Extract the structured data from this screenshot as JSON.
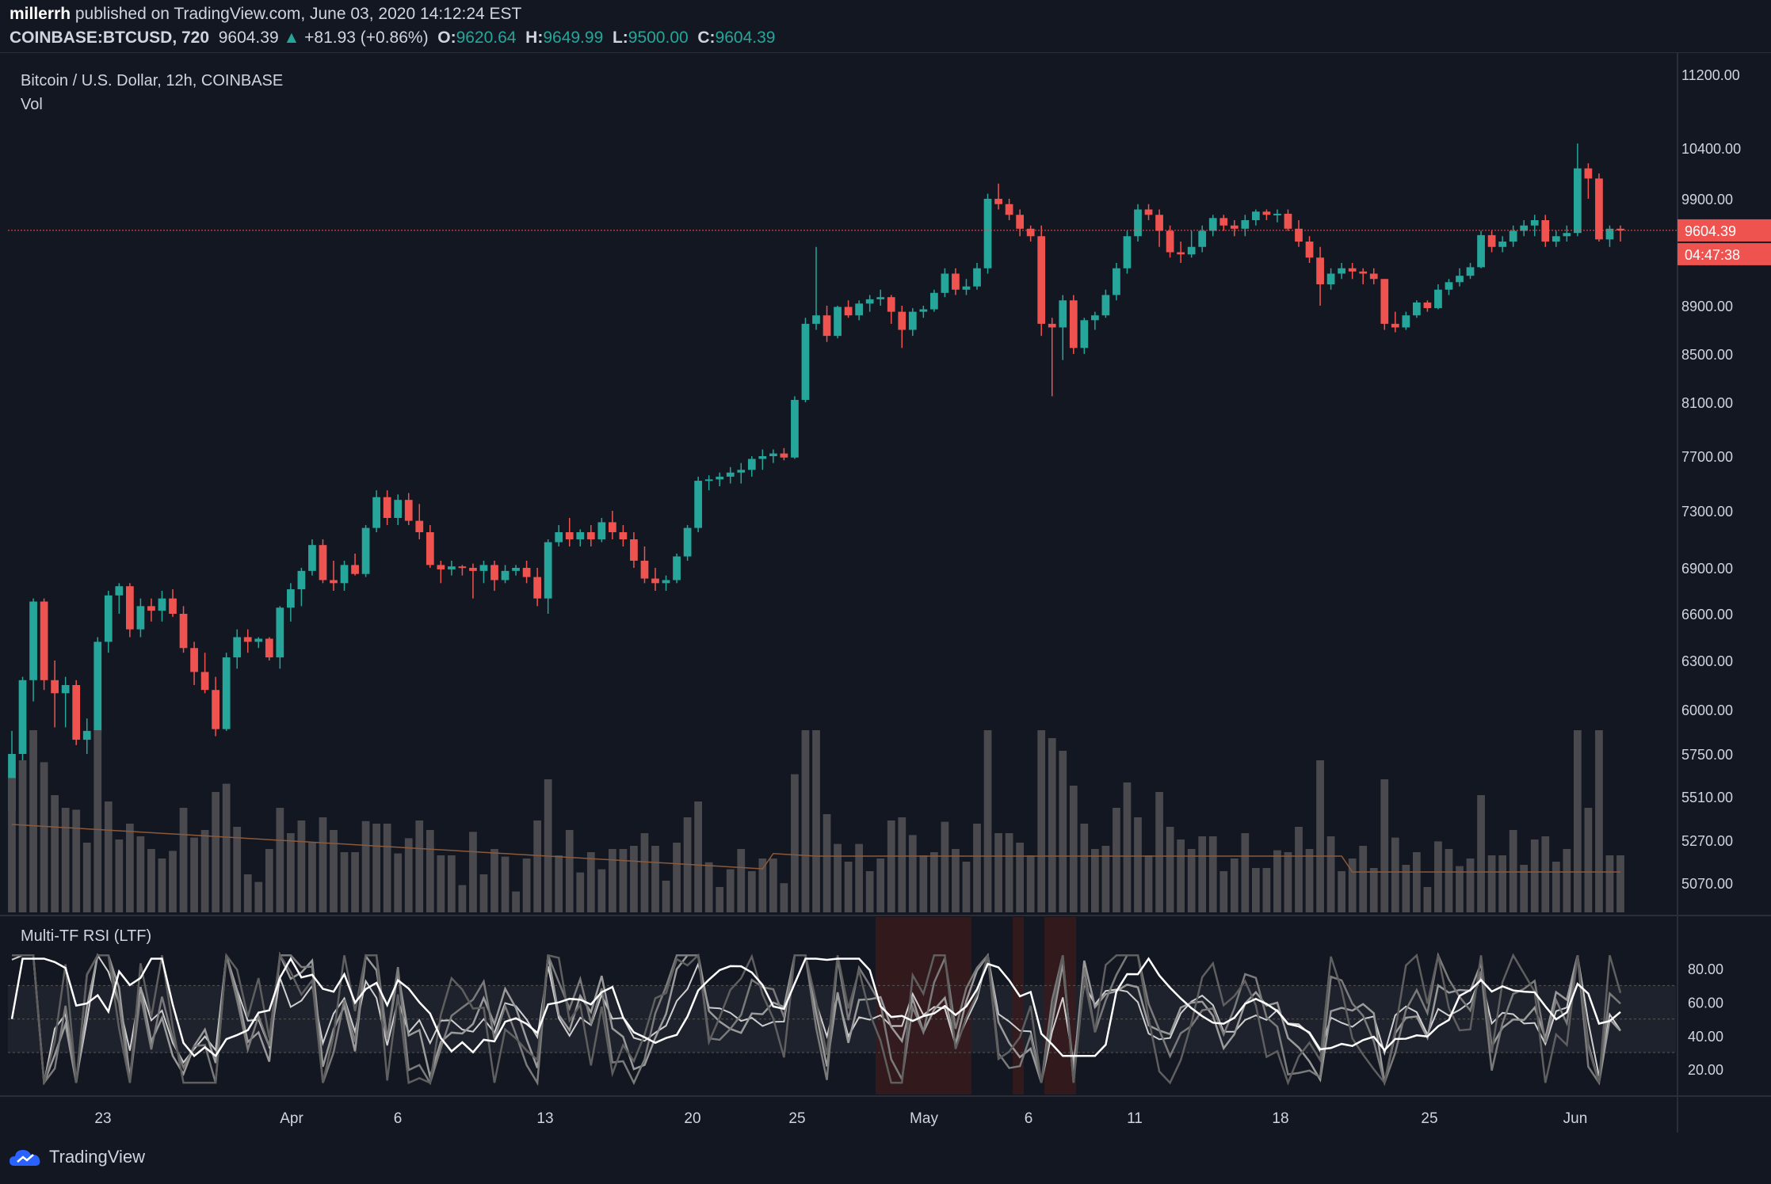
{
  "header": {
    "author": "millerrh",
    "published_text": "published on TradingView.com, June 03, 2020 14:12:24 EST",
    "symbol": "COINBASE:BTCUSD, 720",
    "last": "9604.39",
    "change": "+81.93 (+0.86%)",
    "o_label": "O:",
    "o": "9620.64",
    "h_label": "H:",
    "h": "9649.99",
    "l_label": "L:",
    "l": "9500.00",
    "c_label": "C:",
    "c": "9604.39"
  },
  "panes": {
    "main_title": "Bitcoin / U.S. Dollar, 12h, COINBASE",
    "vol_label": "Vol",
    "rsi_title": "Multi-TF RSI (LTF)"
  },
  "price_axis": {
    "ticks": [
      "11200.00",
      "10400.00",
      "9900.00",
      "9604.39",
      "8900.00",
      "8500.00",
      "8100.00",
      "7700.00",
      "7300.00",
      "6900.00",
      "6600.00",
      "6300.00",
      "6000.00",
      "5750.00",
      "5510.00",
      "5270.00",
      "5070.00"
    ],
    "current_price": "9604.39",
    "countdown": "04:47:38"
  },
  "rsi_axis": {
    "ticks": [
      "80.00",
      "60.00",
      "40.00",
      "20.00"
    ]
  },
  "time_axis": {
    "labels": [
      "23",
      "Apr",
      "6",
      "13",
      "20",
      "25",
      "May",
      "6",
      "11",
      "18",
      "25",
      "Jun"
    ]
  },
  "footer": {
    "brand": "TradingView"
  },
  "colors": {
    "bg": "#131722",
    "up": "#26a69a",
    "down": "#ef5350",
    "grid": "#2a2e39",
    "text": "#d1d4dc",
    "price_line": "#ef5350",
    "ma": "#8a5a3c"
  },
  "chart_data": {
    "type": "candlestick",
    "symbol": "BTCUSD",
    "timeframe": "12h",
    "y_range": [
      4900,
      11300
    ],
    "current_price": 9604.39,
    "candles": [
      [
        5430,
        5880,
        5350,
        5750
      ],
      [
        5750,
        6200,
        5650,
        6180
      ],
      [
        6180,
        6700,
        6050,
        6680
      ],
      [
        6680,
        6700,
        6120,
        6180
      ],
      [
        6180,
        6300,
        5900,
        6100
      ],
      [
        6100,
        6200,
        5900,
        6150
      ],
      [
        6150,
        6180,
        5800,
        5830
      ],
      [
        5830,
        5950,
        5750,
        5880
      ],
      [
        5880,
        6450,
        5850,
        6420
      ],
      [
        6420,
        6750,
        6350,
        6720
      ],
      [
        6720,
        6800,
        6600,
        6780
      ],
      [
        6780,
        6800,
        6450,
        6500
      ],
      [
        6500,
        6700,
        6450,
        6650
      ],
      [
        6650,
        6700,
        6550,
        6620
      ],
      [
        6620,
        6750,
        6550,
        6700
      ],
      [
        6700,
        6760,
        6580,
        6600
      ],
      [
        6600,
        6650,
        6350,
        6380
      ],
      [
        6380,
        6420,
        6150,
        6230
      ],
      [
        6230,
        6350,
        6100,
        6120
      ],
      [
        6120,
        6200,
        5850,
        5890
      ],
      [
        5890,
        6350,
        5880,
        6320
      ],
      [
        6320,
        6500,
        6250,
        6450
      ],
      [
        6450,
        6500,
        6350,
        6420
      ],
      [
        6420,
        6450,
        6380,
        6440
      ],
      [
        6440,
        6450,
        6300,
        6320
      ],
      [
        6320,
        6650,
        6250,
        6640
      ],
      [
        6640,
        6800,
        6550,
        6760
      ],
      [
        6760,
        6900,
        6650,
        6880
      ],
      [
        6880,
        7100,
        6850,
        7060
      ],
      [
        7060,
        7100,
        6800,
        6820
      ],
      [
        6820,
        6950,
        6750,
        6800
      ],
      [
        6800,
        6950,
        6750,
        6920
      ],
      [
        6920,
        7000,
        6850,
        6860
      ],
      [
        6860,
        7200,
        6840,
        7180
      ],
      [
        7180,
        7450,
        7150,
        7400
      ],
      [
        7400,
        7450,
        7200,
        7250
      ],
      [
        7250,
        7420,
        7200,
        7380
      ],
      [
        7380,
        7430,
        7200,
        7230
      ],
      [
        7230,
        7350,
        7100,
        7150
      ],
      [
        7150,
        7200,
        6900,
        6920
      ],
      [
        6920,
        6950,
        6800,
        6890
      ],
      [
        6890,
        6950,
        6850,
        6910
      ],
      [
        6910,
        6920,
        6850,
        6900
      ],
      [
        6900,
        6930,
        6700,
        6880
      ],
      [
        6880,
        6950,
        6800,
        6920
      ],
      [
        6920,
        6950,
        6750,
        6820
      ],
      [
        6820,
        6920,
        6800,
        6880
      ],
      [
        6880,
        6920,
        6850,
        6900
      ],
      [
        6900,
        6950,
        6800,
        6840
      ],
      [
        6840,
        6900,
        6650,
        6700
      ],
      [
        6700,
        7100,
        6600,
        7080
      ],
      [
        7080,
        7200,
        7050,
        7150
      ],
      [
        7150,
        7250,
        7050,
        7100
      ],
      [
        7100,
        7170,
        7050,
        7150
      ],
      [
        7150,
        7200,
        7050,
        7100
      ],
      [
        7100,
        7250,
        7080,
        7220
      ],
      [
        7220,
        7300,
        7100,
        7150
      ],
      [
        7150,
        7200,
        7050,
        7100
      ],
      [
        7100,
        7150,
        6900,
        6950
      ],
      [
        6950,
        7050,
        6800,
        6830
      ],
      [
        6830,
        6900,
        6750,
        6800
      ],
      [
        6800,
        6850,
        6750,
        6820
      ],
      [
        6820,
        7000,
        6800,
        6980
      ],
      [
        6980,
        7200,
        6950,
        7180
      ],
      [
        7180,
        7550,
        7150,
        7520
      ],
      [
        7520,
        7560,
        7450,
        7530
      ],
      [
        7530,
        7580,
        7480,
        7550
      ],
      [
        7550,
        7620,
        7500,
        7580
      ],
      [
        7580,
        7650,
        7500,
        7600
      ],
      [
        7600,
        7700,
        7550,
        7680
      ],
      [
        7680,
        7750,
        7600,
        7700
      ],
      [
        7700,
        7750,
        7650,
        7720
      ],
      [
        7720,
        7760,
        7670,
        7690
      ],
      [
        7690,
        8150,
        7680,
        8120
      ],
      [
        8120,
        8800,
        8100,
        8750
      ],
      [
        8750,
        9450,
        8700,
        8820
      ],
      [
        8820,
        8900,
        8600,
        8650
      ],
      [
        8650,
        8900,
        8630,
        8890
      ],
      [
        8890,
        8950,
        8800,
        8820
      ],
      [
        8820,
        8950,
        8780,
        8920
      ],
      [
        8920,
        9000,
        8850,
        8960
      ],
      [
        8960,
        9050,
        8900,
        8980
      ],
      [
        8980,
        9000,
        8750,
        8850
      ],
      [
        8850,
        8900,
        8550,
        8700
      ],
      [
        8700,
        8880,
        8650,
        8850
      ],
      [
        8850,
        8900,
        8800,
        8870
      ],
      [
        8870,
        9050,
        8850,
        9020
      ],
      [
        9020,
        9250,
        8980,
        9200
      ],
      [
        9200,
        9250,
        9000,
        9050
      ],
      [
        9050,
        9150,
        9000,
        9080
      ],
      [
        9080,
        9300,
        9050,
        9250
      ],
      [
        9250,
        9950,
        9200,
        9900
      ],
      [
        9900,
        10050,
        9800,
        9850
      ],
      [
        9850,
        9900,
        9700,
        9750
      ],
      [
        9750,
        9800,
        9550,
        9620
      ],
      [
        9620,
        9650,
        9500,
        9550
      ],
      [
        9550,
        9650,
        8650,
        8750
      ],
      [
        8750,
        8800,
        8150,
        8720
      ],
      [
        8720,
        9000,
        8450,
        8950
      ],
      [
        8950,
        9000,
        8500,
        8550
      ],
      [
        8550,
        8800,
        8500,
        8780
      ],
      [
        8780,
        8850,
        8700,
        8820
      ],
      [
        8820,
        9050,
        8800,
        9000
      ],
      [
        9000,
        9300,
        8950,
        9250
      ],
      [
        9250,
        9600,
        9200,
        9550
      ],
      [
        9550,
        9850,
        9500,
        9800
      ],
      [
        9800,
        9850,
        9700,
        9750
      ],
      [
        9750,
        9800,
        9450,
        9600
      ],
      [
        9600,
        9650,
        9350,
        9400
      ],
      [
        9400,
        9500,
        9300,
        9380
      ],
      [
        9380,
        9600,
        9350,
        9450
      ],
      [
        9450,
        9650,
        9400,
        9600
      ],
      [
        9600,
        9750,
        9550,
        9720
      ],
      [
        9720,
        9750,
        9600,
        9650
      ],
      [
        9650,
        9700,
        9550,
        9620
      ],
      [
        9620,
        9750,
        9550,
        9700
      ],
      [
        9700,
        9800,
        9650,
        9780
      ],
      [
        9780,
        9800,
        9700,
        9750
      ],
      [
        9750,
        9800,
        9680,
        9760
      ],
      [
        9760,
        9800,
        9600,
        9620
      ],
      [
        9620,
        9700,
        9450,
        9500
      ],
      [
        9500,
        9550,
        9300,
        9350
      ],
      [
        9350,
        9450,
        8900,
        9100
      ],
      [
        9100,
        9250,
        9050,
        9200
      ],
      [
        9200,
        9300,
        9150,
        9250
      ],
      [
        9250,
        9300,
        9150,
        9220
      ],
      [
        9220,
        9250,
        9100,
        9200
      ],
      [
        9200,
        9250,
        9100,
        9150
      ],
      [
        9150,
        9150,
        8700,
        8750
      ],
      [
        8750,
        8850,
        8680,
        8720
      ],
      [
        8720,
        8850,
        8700,
        8820
      ],
      [
        8820,
        8950,
        8800,
        8930
      ],
      [
        8930,
        8950,
        8850,
        8880
      ],
      [
        8880,
        9100,
        8870,
        9050
      ],
      [
        9050,
        9150,
        9000,
        9120
      ],
      [
        9120,
        9250,
        9080,
        9180
      ],
      [
        9180,
        9300,
        9150,
        9260
      ],
      [
        9260,
        9600,
        9250,
        9560
      ],
      [
        9560,
        9600,
        9400,
        9450
      ],
      [
        9450,
        9550,
        9400,
        9500
      ],
      [
        9500,
        9650,
        9450,
        9600
      ],
      [
        9600,
        9700,
        9550,
        9650
      ],
      [
        9650,
        9750,
        9550,
        9700
      ],
      [
        9700,
        9750,
        9450,
        9500
      ],
      [
        9500,
        9600,
        9450,
        9550
      ],
      [
        9550,
        9650,
        9500,
        9580
      ],
      [
        9580,
        10450,
        9550,
        10200
      ],
      [
        10200,
        10250,
        9900,
        10100
      ],
      [
        10100,
        10150,
        9500,
        9520
      ],
      [
        9520,
        9650,
        9450,
        9620
      ],
      [
        9620,
        9650,
        9500,
        9604.39
      ]
    ]
  }
}
